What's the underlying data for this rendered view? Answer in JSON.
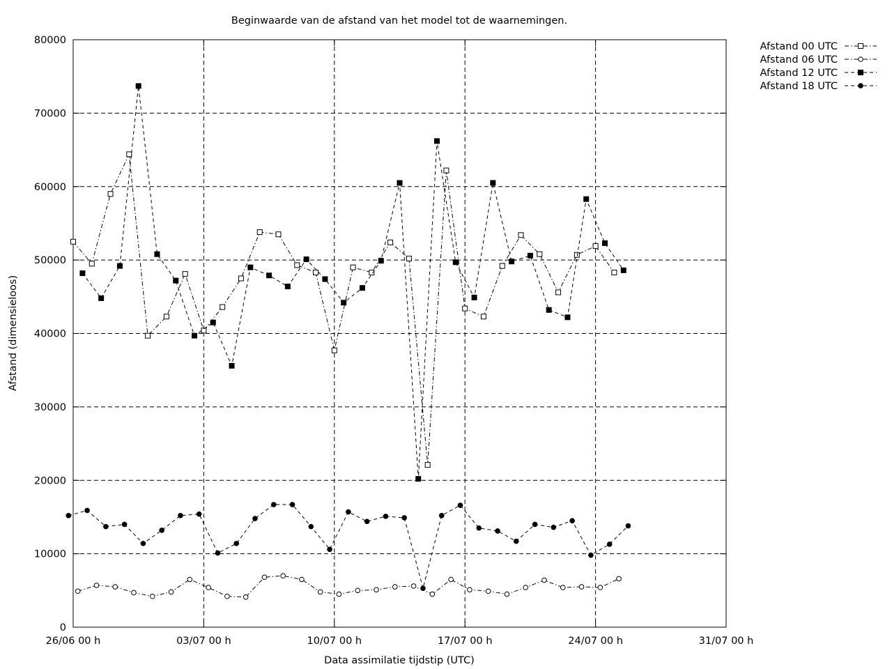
{
  "chart_data": {
    "type": "line",
    "title": "Beginwaarde van de afstand van het model tot de waarnemingen.",
    "xlabel": "Data assimilatie tijdstip (UTC)",
    "ylabel": "Afstand (dimensieloos)",
    "x_unit": "days since 26/06 00 h",
    "xlim": [
      0,
      35
    ],
    "ylim": [
      0,
      80000
    ],
    "x_ticks": [
      {
        "x": 0,
        "label": "26/06 00 h"
      },
      {
        "x": 7,
        "label": "03/07 00 h"
      },
      {
        "x": 14,
        "label": "10/07 00 h"
      },
      {
        "x": 21,
        "label": "17/07 00 h"
      },
      {
        "x": 28,
        "label": "24/07 00 h"
      },
      {
        "x": 35,
        "label": "31/07 00 h"
      }
    ],
    "y_ticks": [
      0,
      10000,
      20000,
      30000,
      40000,
      50000,
      60000,
      70000,
      80000
    ],
    "grid": true,
    "legend_position": "outside-top-right",
    "series": [
      {
        "name": "Afstand 00 UTC",
        "marker": "open-square",
        "dash": "dash-dot",
        "offset_days": 0,
        "values": [
          52500,
          49500,
          59000,
          64400,
          39700,
          42300,
          48100,
          40400,
          43600,
          47500,
          53800,
          53500,
          49300,
          48300,
          37700,
          49000,
          48300,
          52400,
          50200,
          22100,
          62200,
          43400,
          42300,
          49200,
          53400,
          50800,
          45600,
          50700,
          51900,
          48300
        ]
      },
      {
        "name": "Afstand 06 UTC",
        "marker": "open-circle",
        "dash": "dash-dot",
        "offset_days": 0.25,
        "values": [
          4900,
          5700,
          5500,
          4700,
          4200,
          4800,
          6500,
          5400,
          4200,
          4100,
          6800,
          7000,
          6500,
          4800,
          4500,
          5000,
          5100,
          5500,
          5600,
          4500,
          6500,
          5100,
          4900,
          4500,
          5400,
          6400,
          5400,
          5500,
          5400,
          6600
        ]
      },
      {
        "name": "Afstand 12 UTC",
        "marker": "filled-square",
        "dash": "dash",
        "offset_days": 0.5,
        "values": [
          48200,
          44800,
          49200,
          73700,
          50800,
          47200,
          39700,
          41500,
          35600,
          49000,
          47900,
          46400,
          50100,
          47400,
          44200,
          46200,
          49900,
          60500,
          20200,
          66200,
          49700,
          44900,
          60500,
          49800,
          50600,
          43200,
          42200,
          58300,
          52300,
          48600
        ]
      },
      {
        "name": "Afstand 18 UTC",
        "marker": "filled-circle",
        "dash": "dash",
        "offset_days": -0.25,
        "values": [
          15200,
          15900,
          13700,
          14000,
          11400,
          13200,
          15200,
          15400,
          10100,
          11400,
          14800,
          16700,
          16700,
          13700,
          10600,
          15700,
          14400,
          15100,
          14900,
          5300,
          15200,
          16600,
          13500,
          13100,
          11700,
          14000,
          13600,
          14500,
          9800,
          11300,
          13800
        ]
      }
    ]
  }
}
